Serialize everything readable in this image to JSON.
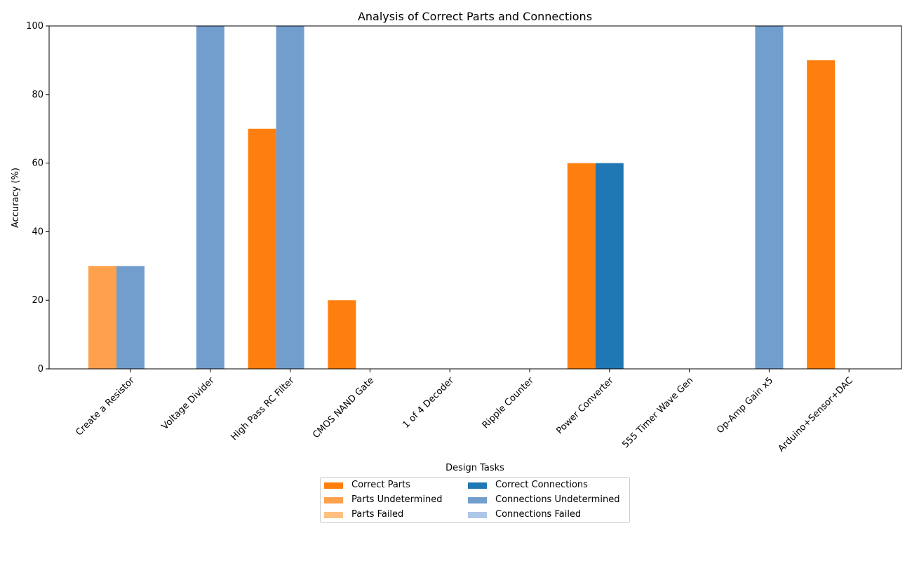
{
  "chart_data": {
    "type": "bar",
    "title": "Analysis of Correct Parts and Connections",
    "xlabel": "Design Tasks",
    "ylabel": "Accuracy (%)",
    "ylim": [
      0,
      100
    ],
    "yticks": [
      "0",
      "20",
      "40",
      "60",
      "80",
      "100"
    ],
    "grid": false,
    "legend_position": "below",
    "categories": [
      "Create a Resistor",
      "Voltage Divider",
      "High Pass RC Filter",
      "CMOS NAND Gate",
      "1 of 4 Decoder",
      "Ripple Counter",
      "Power Converter",
      "555 Timer Wave Gen",
      "Op-Amp Gain x5",
      "Arduino+Sensor+DAC"
    ],
    "series": [
      {
        "name": "Correct Parts",
        "color": "#ff7f0e",
        "group": "parts",
        "values": [
          0,
          0,
          70,
          20,
          0,
          0,
          60,
          0,
          0,
          90
        ]
      },
      {
        "name": "Parts Undetermined",
        "color": "#ffa04d",
        "group": "parts",
        "values": [
          30,
          0,
          0,
          0,
          0,
          0,
          0,
          0,
          0,
          0
        ]
      },
      {
        "name": "Parts Failed",
        "color": "#ffc080",
        "group": "parts",
        "values": [
          0,
          0,
          0,
          0,
          0,
          0,
          0,
          0,
          0,
          0
        ]
      },
      {
        "name": "Correct Connections",
        "color": "#1f77b4",
        "group": "connections",
        "values": [
          0,
          0,
          0,
          0,
          0,
          0,
          60,
          0,
          0,
          0
        ]
      },
      {
        "name": "Connections Undetermined",
        "color": "#729ece",
        "group": "connections",
        "values": [
          30,
          100,
          100,
          0,
          0,
          0,
          0,
          0,
          100,
          0
        ]
      },
      {
        "name": "Connections Failed",
        "color": "#aec7e8",
        "group": "connections",
        "values": [
          0,
          0,
          0,
          0,
          0,
          0,
          0,
          0,
          0,
          0
        ]
      }
    ]
  }
}
